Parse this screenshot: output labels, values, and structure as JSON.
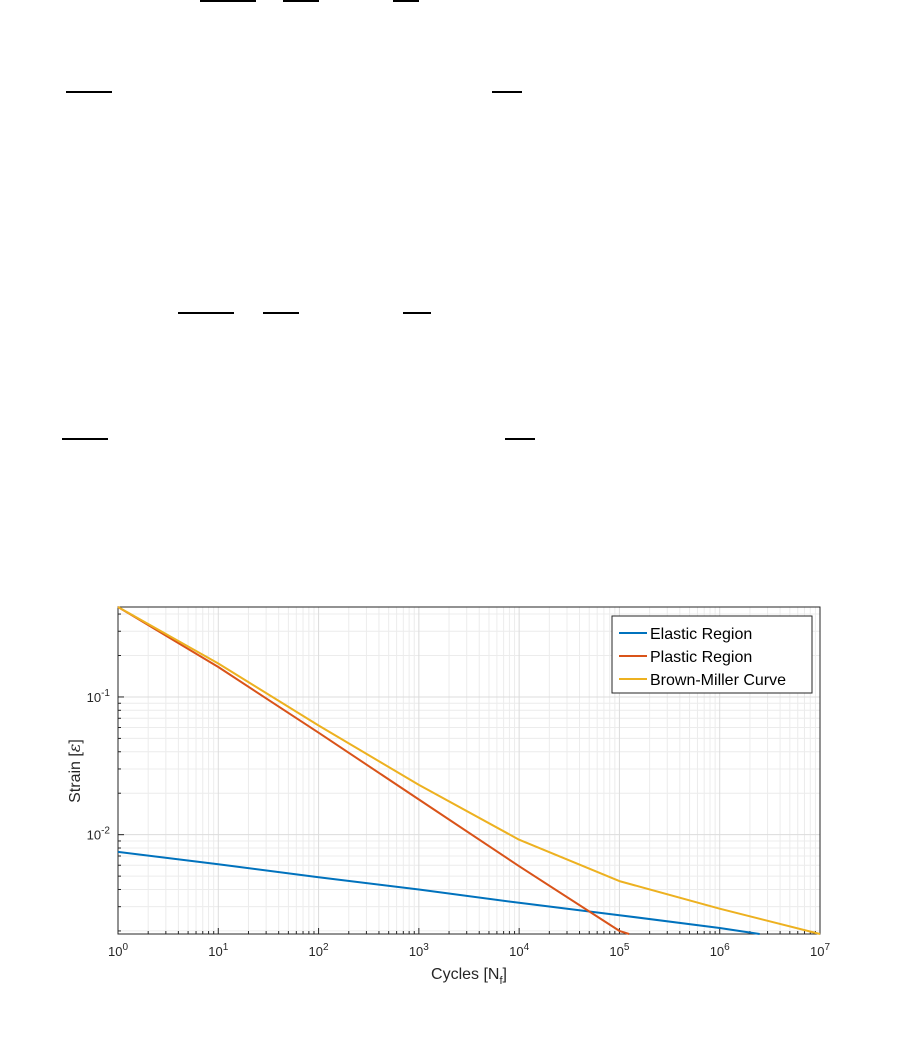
{
  "chart_data": {
    "type": "line",
    "xscale": "log",
    "yscale": "log",
    "xlim": [
      1,
      10000000
    ],
    "ylim": [
      0.0019,
      0.45
    ],
    "xlabel_main": "Cycles [N",
    "xlabel_sub": "f",
    "xlabel_end": "]",
    "ylabel_main": "Strain [",
    "ylabel_sym": "ε",
    "ylabel_end": "]",
    "x_ticks": [
      {
        "value": 1,
        "base": "10",
        "exp": "0"
      },
      {
        "value": 10,
        "base": "10",
        "exp": "1"
      },
      {
        "value": 100,
        "base": "10",
        "exp": "2"
      },
      {
        "value": 1000,
        "base": "10",
        "exp": "3"
      },
      {
        "value": 10000,
        "base": "10",
        "exp": "4"
      },
      {
        "value": 100000,
        "base": "10",
        "exp": "5"
      },
      {
        "value": 1000000,
        "base": "10",
        "exp": "6"
      },
      {
        "value": 10000000,
        "base": "10",
        "exp": "7"
      }
    ],
    "y_ticks": [
      {
        "value": 0.01,
        "base": "10",
        "exp": "-2"
      },
      {
        "value": 0.1,
        "base": "10",
        "exp": "-1"
      }
    ],
    "grid": true,
    "legend_position": "top-right",
    "series": [
      {
        "name": "Elastic Region",
        "color": "#0072BD",
        "x": [
          1,
          10,
          100,
          1000,
          10000,
          100000,
          1000000,
          2500000
        ],
        "y": [
          0.0075,
          0.0061,
          0.0049,
          0.004,
          0.0032,
          0.0026,
          0.0021,
          0.0019
        ]
      },
      {
        "name": "Plastic Region",
        "color": "#D95319",
        "x": [
          1,
          10,
          100,
          1000,
          10000,
          100000,
          125000
        ],
        "y": [
          0.45,
          0.165,
          0.055,
          0.018,
          0.0059,
          0.002,
          0.0019
        ]
      },
      {
        "name": "Brown-Miller Curve",
        "color": "#EDB120",
        "x": [
          1,
          10,
          100,
          1000,
          10000,
          100000,
          1000000,
          10000000
        ],
        "y": [
          0.45,
          0.175,
          0.062,
          0.023,
          0.0092,
          0.0046,
          0.0029,
          0.0019
        ]
      }
    ]
  }
}
